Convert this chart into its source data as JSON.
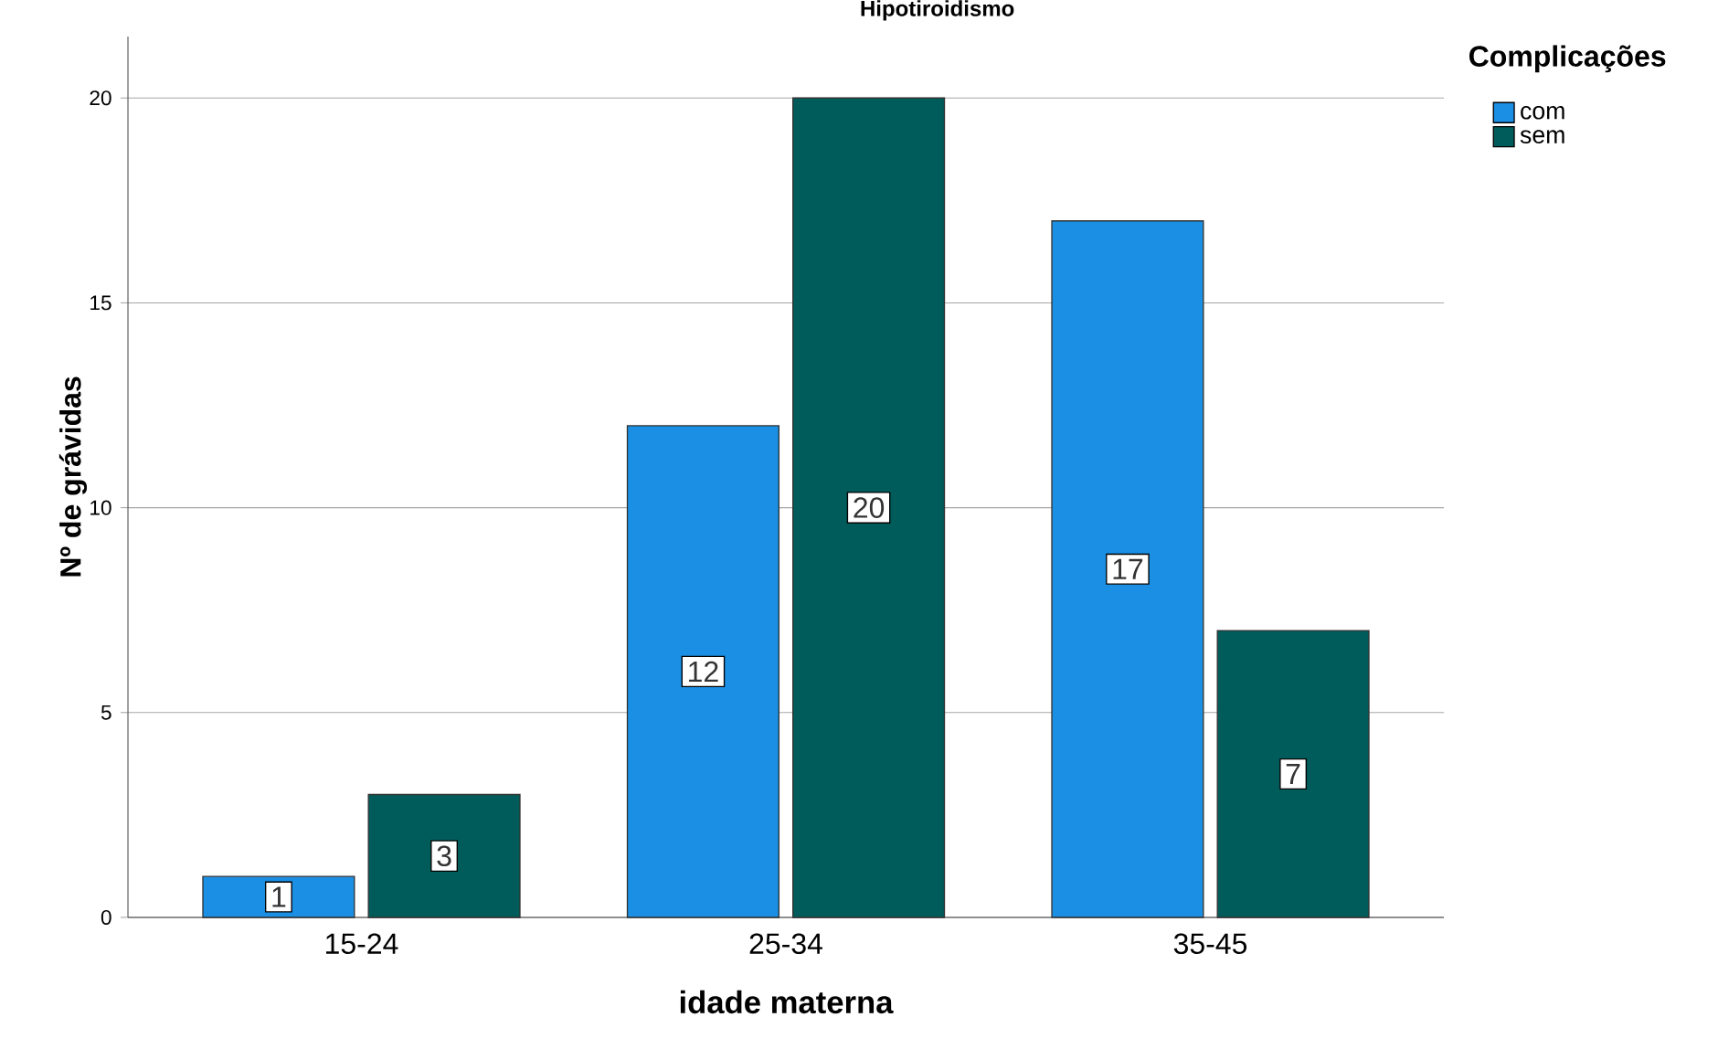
{
  "chart_data": {
    "type": "bar",
    "title": "Hipotiroidismo",
    "xlabel": "idade materna",
    "ylabel": "Nº de grávidas",
    "legend_title": "Complicações",
    "categories": [
      "15-24",
      "25-34",
      "35-45"
    ],
    "series": [
      {
        "name": "com",
        "color": "#1a8fe3",
        "values": [
          1,
          12,
          17
        ]
      },
      {
        "name": "sem",
        "color": "#005c5a",
        "values": [
          3,
          20,
          7
        ]
      }
    ],
    "ylim": [
      0,
      21.5
    ],
    "yticks": [
      0,
      5,
      10,
      15,
      20
    ],
    "grid": "y",
    "legend": "right",
    "data_labels": true
  }
}
